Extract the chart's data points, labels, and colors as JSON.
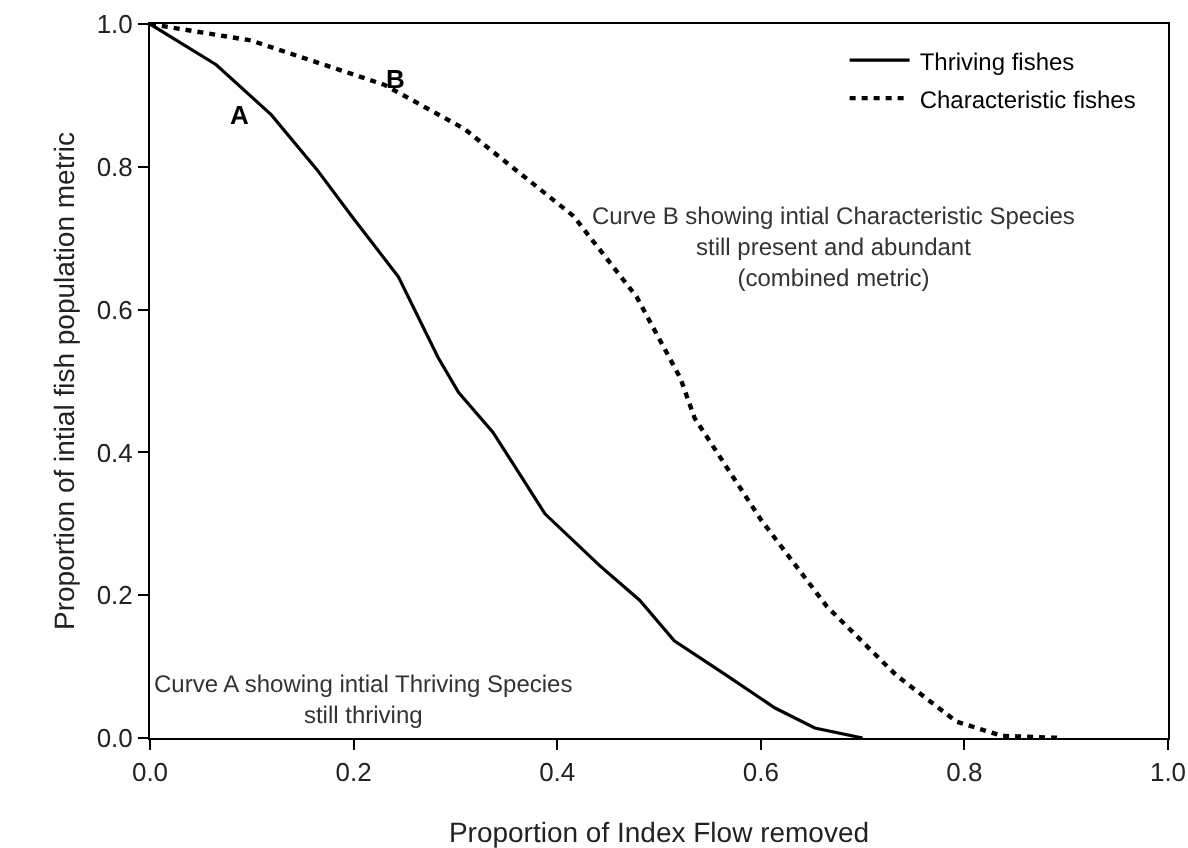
{
  "chart_data": {
    "type": "line",
    "xlabel": "Proportion of Index Flow removed",
    "ylabel": "Proportion of intial fish population metric",
    "xlim": [
      0,
      1
    ],
    "xticks": [
      {
        "value": 0,
        "label": "0.0"
      },
      0.2,
      0.4,
      0.6,
      0.8,
      {
        "value": 1,
        "label": "1.0"
      }
    ],
    "ylim": [
      0,
      1
    ],
    "yticks": [
      {
        "value": 0,
        "label": "0.0"
      },
      0.2,
      0.4,
      0.6,
      0.8,
      {
        "value": 1,
        "label": "1.0"
      }
    ],
    "grid": false,
    "legend": "top right",
    "marker": "none",
    "series": [
      {
        "name": "Thriving fishes",
        "color": "#000000",
        "line_style": "solid",
        "x": [
          0,
          0.065,
          0.119,
          0.164,
          0.198,
          0.244,
          0.283,
          0.303,
          0.337,
          0.388,
          0.442,
          0.481,
          0.515,
          0.566,
          0.614,
          0.653,
          0.7
        ],
        "values": [
          1,
          0.943,
          0.873,
          0.796,
          0.731,
          0.646,
          0.533,
          0.484,
          0.428,
          0.314,
          0.241,
          0.193,
          0.136,
          0.088,
          0.042,
          0.014,
          0
        ]
      },
      {
        "name": "Characteristic fishes",
        "color": "#000000",
        "line_style": "dotted",
        "x": [
          0,
          0.099,
          0.23,
          0.309,
          0.416,
          0.478,
          0.521,
          0.535,
          0.6,
          0.665,
          0.733,
          0.792,
          0.837,
          0.897
        ],
        "values": [
          1,
          0.977,
          0.915,
          0.853,
          0.731,
          0.618,
          0.504,
          0.448,
          0.306,
          0.184,
          0.088,
          0.023,
          0.003,
          0
        ]
      }
    ],
    "annotations": [
      "A",
      "B",
      "Curve B showing intial Characteristic Species\nstill present and abundant\n(combined metric)",
      "Curve A showing intial Thriving Species\nstill thriving"
    ]
  }
}
